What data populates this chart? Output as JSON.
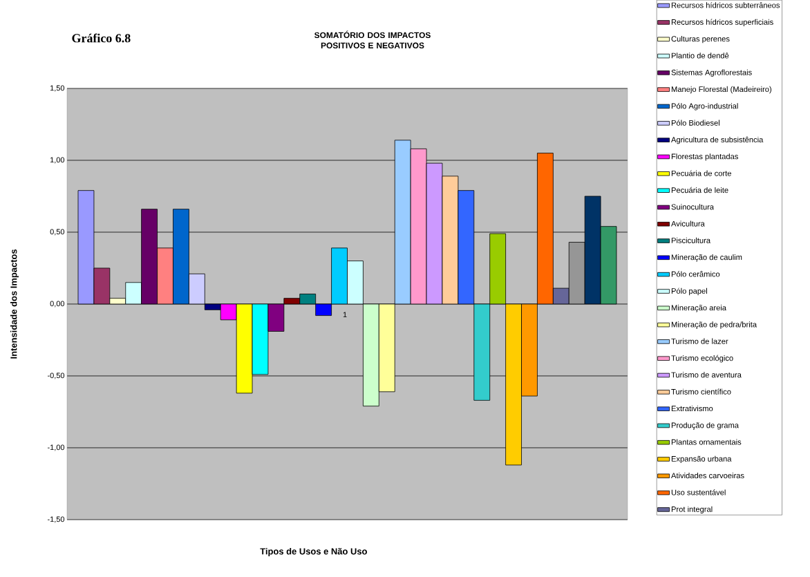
{
  "chart_data": {
    "type": "bar",
    "title": "SOMATÓRIO DOS IMPACTOS POSITIVOS E NEGATIVOS",
    "xlabel": "Tipos de Usos e Não Uso",
    "ylabel": "Intensidade dos Impactos",
    "annotations": [
      "Gráfico 6.8"
    ],
    "categories": [
      "1"
    ],
    "ylim": [
      -1.5,
      1.5
    ],
    "yticks": [
      {
        "value": -1.5,
        "label": "-1,50"
      },
      {
        "value": -1.0,
        "label": "-1,00"
      },
      {
        "value": -0.5,
        "label": "-0,50"
      },
      {
        "value": 0,
        "label": "0,00"
      },
      {
        "value": 0.5,
        "label": "0,50"
      },
      {
        "value": 1.0,
        "label": "1,00"
      },
      {
        "value": 1.5,
        "label": "1,50"
      }
    ],
    "grid": "y",
    "legend": "right",
    "series": [
      {
        "name": "Recursos hídricos subterrâneos",
        "color": "#9999ff",
        "values": [
          0.79
        ]
      },
      {
        "name": "Recursos hídricos superficiais",
        "color": "#993366",
        "values": [
          0.25
        ]
      },
      {
        "name": "Culturas perenes",
        "color": "#ffffcc",
        "values": [
          0.04
        ]
      },
      {
        "name": "Plantio de dendê",
        "color": "#ccffff",
        "values": [
          0.15
        ]
      },
      {
        "name": "Sistemas Agroflorestais",
        "color": "#660066",
        "values": [
          0.66
        ]
      },
      {
        "name": "Manejo Florestal (Madeireiro)",
        "color": "#ff8080",
        "values": [
          0.39
        ]
      },
      {
        "name": "Pólo Agro-industrial",
        "color": "#0066cc",
        "values": [
          0.66
        ]
      },
      {
        "name": "Pólo Biodiesel",
        "color": "#ccccff",
        "values": [
          0.21
        ]
      },
      {
        "name": "Agricultura de subsistência",
        "color": "#000080",
        "values": [
          -0.04
        ]
      },
      {
        "name": "Florestas plantadas",
        "color": "#ff00ff",
        "values": [
          -0.11
        ]
      },
      {
        "name": "Pecuária de corte",
        "color": "#ffff00",
        "values": [
          -0.62
        ]
      },
      {
        "name": "Pecuária de leite",
        "color": "#00ffff",
        "values": [
          -0.49
        ]
      },
      {
        "name": "Suinocultura",
        "color": "#800080",
        "values": [
          -0.19
        ]
      },
      {
        "name": "Avicultura",
        "color": "#800000",
        "values": [
          0.04
        ]
      },
      {
        "name": "Piscicultura",
        "color": "#008080",
        "values": [
          0.07
        ]
      },
      {
        "name": "Mineração de caulim",
        "color": "#0000ff",
        "values": [
          -0.08
        ]
      },
      {
        "name": "Pólo cerâmico",
        "color": "#00ccff",
        "values": [
          0.39
        ]
      },
      {
        "name": "Pólo papel",
        "color": "#ccffff",
        "values": [
          0.3
        ]
      },
      {
        "name": "Mineração areia",
        "color": "#ccffcc",
        "values": [
          -0.71
        ]
      },
      {
        "name": "Mineração de pedra/brita",
        "color": "#ffff99",
        "values": [
          -0.61
        ]
      },
      {
        "name": "Turismo de lazer",
        "color": "#99ccff",
        "values": [
          1.14
        ]
      },
      {
        "name": "Turismo ecológico",
        "color": "#ff99cc",
        "values": [
          1.08
        ]
      },
      {
        "name": "Turismo de aventura",
        "color": "#cc99ff",
        "values": [
          0.98
        ]
      },
      {
        "name": "Turismo científico",
        "color": "#ffcc99",
        "values": [
          0.89
        ]
      },
      {
        "name": "Extrativismo",
        "color": "#3366ff",
        "values": [
          0.79
        ]
      },
      {
        "name": "Produção de grama",
        "color": "#33cccc",
        "values": [
          -0.67
        ]
      },
      {
        "name": "Plantas ornamentais",
        "color": "#99cc00",
        "values": [
          0.49
        ]
      },
      {
        "name": "Expansão urbana",
        "color": "#ffcc00",
        "values": [
          -1.12
        ]
      },
      {
        "name": "Atividades carvoeiras",
        "color": "#ff9900",
        "values": [
          -0.64
        ]
      },
      {
        "name": "Uso sustentável",
        "color": "#ff6600",
        "values": [
          1.05
        ]
      },
      {
        "name": "Prot integral",
        "color": "#666699",
        "values": [
          0.11
        ]
      },
      {
        "color": "#969696",
        "values": [
          0.43
        ]
      },
      {
        "color": "#003366",
        "values": [
          0.75
        ]
      },
      {
        "color": "#339966",
        "values": [
          0.54
        ]
      }
    ]
  }
}
